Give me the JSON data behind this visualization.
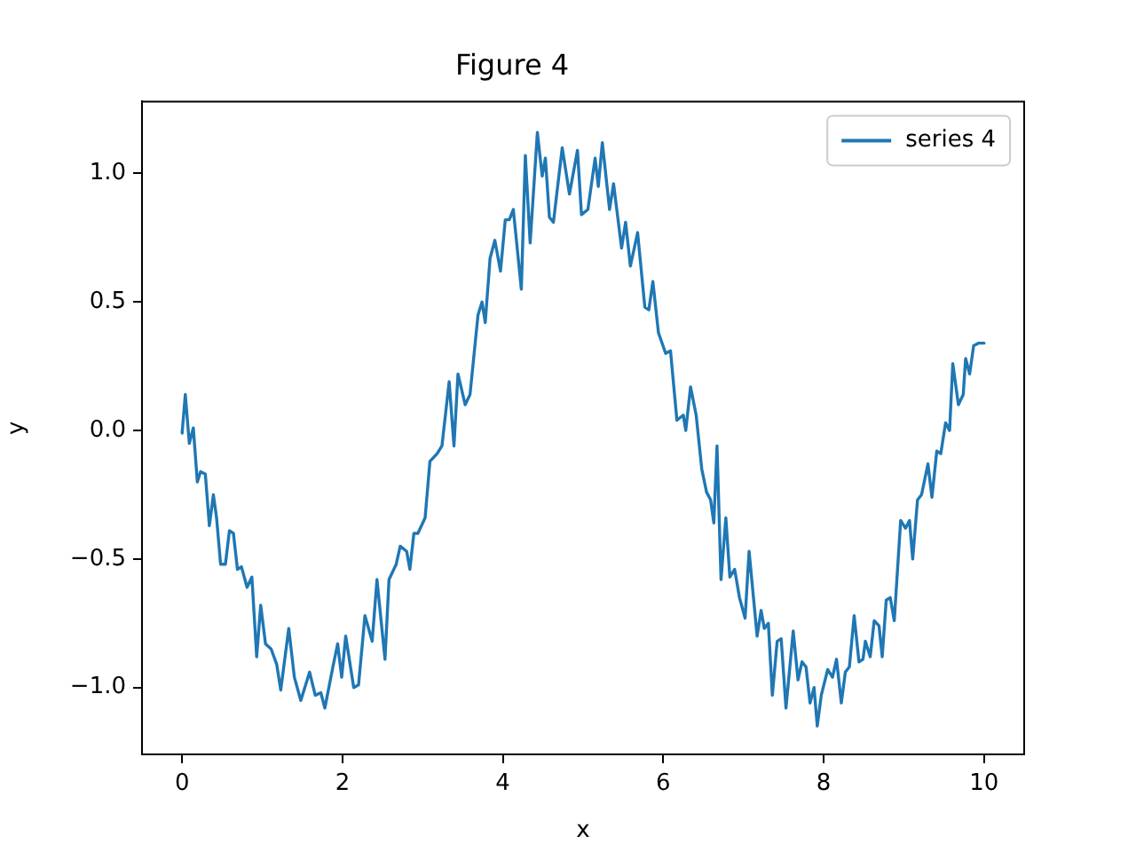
{
  "chart_data": {
    "type": "line",
    "title": "Figure 4",
    "xlabel": "x",
    "ylabel": "y",
    "xlim": [
      -0.5,
      10.5
    ],
    "ylim": [
      -1.26,
      1.28
    ],
    "xticks": [
      0,
      2,
      4,
      6,
      8,
      10
    ],
    "yticks": [
      {
        "value": -1,
        "label": "−1.0"
      },
      {
        "value": -0.5,
        "label": "−0.5"
      },
      {
        "value": 0,
        "label": "0.0"
      },
      {
        "value": 0.5,
        "label": "0.5"
      },
      {
        "value": 1,
        "label": "1.0"
      }
    ],
    "grid": false,
    "legend": "top right",
    "series": [
      {
        "name": "series 4",
        "color": "#1f77b4",
        "x": [
          0,
          0.04,
          0.09,
          0.14,
          0.19,
          0.23,
          0.29,
          0.34,
          0.39,
          0.43,
          0.48,
          0.54,
          0.59,
          0.64,
          0.69,
          0.74,
          0.81,
          0.87,
          0.93,
          0.98,
          1.04,
          1.11,
          1.18,
          1.23,
          1.33,
          1.4,
          1.48,
          1.59,
          1.66,
          1.73,
          1.78,
          1.88,
          1.94,
          1.99,
          2.04,
          2.14,
          2.2,
          2.28,
          2.37,
          2.43,
          2.53,
          2.58,
          2.67,
          2.72,
          2.8,
          2.84,
          2.89,
          2.94,
          3.03,
          3.09,
          3.18,
          3.24,
          3.33,
          3.39,
          3.44,
          3.53,
          3.59,
          3.69,
          3.74,
          3.78,
          3.84,
          3.9,
          3.97,
          4.03,
          4.08,
          4.13,
          4.23,
          4.28,
          4.34,
          4.43,
          4.49,
          4.53,
          4.58,
          4.63,
          4.74,
          4.83,
          4.93,
          4.98,
          5.06,
          5.15,
          5.19,
          5.24,
          5.33,
          5.38,
          5.48,
          5.53,
          5.59,
          5.68,
          5.77,
          5.82,
          5.87,
          5.94,
          6.03,
          6.09,
          6.17,
          6.25,
          6.28,
          6.34,
          6.41,
          6.48,
          6.54,
          6.59,
          6.63,
          6.67,
          6.72,
          6.78,
          6.83,
          6.89,
          6.95,
          7.02,
          7.07,
          7.17,
          7.22,
          7.26,
          7.31,
          7.36,
          7.42,
          7.47,
          7.53,
          7.62,
          7.68,
          7.73,
          7.78,
          7.83,
          7.88,
          7.92,
          7.97,
          8.05,
          8.11,
          8.16,
          8.22,
          8.27,
          8.32,
          8.38,
          8.44,
          8.49,
          8.52,
          8.58,
          8.63,
          8.69,
          8.73,
          8.78,
          8.83,
          8.88,
          8.96,
          9.02,
          9.07,
          9.11,
          9.17,
          9.22,
          9.3,
          9.35,
          9.41,
          9.46,
          9.52,
          9.57,
          9.61,
          9.68,
          9.74,
          9.77,
          9.82,
          9.87,
          9.93,
          10
        ],
        "values": [
          -0.01,
          0.14,
          -0.05,
          0.01,
          -0.2,
          -0.16,
          -0.17,
          -0.37,
          -0.25,
          -0.34,
          -0.52,
          -0.52,
          -0.39,
          -0.4,
          -0.54,
          -0.53,
          -0.61,
          -0.57,
          -0.88,
          -0.68,
          -0.83,
          -0.85,
          -0.91,
          -1.01,
          -0.77,
          -0.96,
          -1.05,
          -0.94,
          -1.03,
          -1.02,
          -1.08,
          -0.92,
          -0.83,
          -0.96,
          -0.8,
          -1,
          -0.99,
          -0.72,
          -0.82,
          -0.58,
          -0.89,
          -0.58,
          -0.52,
          -0.45,
          -0.47,
          -0.54,
          -0.4,
          -0.4,
          -0.34,
          -0.12,
          -0.09,
          -0.06,
          0.19,
          -0.06,
          0.22,
          0.1,
          0.14,
          0.45,
          0.5,
          0.42,
          0.67,
          0.74,
          0.62,
          0.82,
          0.82,
          0.86,
          0.55,
          1.07,
          0.73,
          1.16,
          0.99,
          1.06,
          0.83,
          0.81,
          1.1,
          0.92,
          1.09,
          0.84,
          0.86,
          1.06,
          0.95,
          1.12,
          0.86,
          0.96,
          0.71,
          0.81,
          0.64,
          0.77,
          0.48,
          0.47,
          0.58,
          0.38,
          0.3,
          0.31,
          0.04,
          0.06,
          0,
          0.17,
          0.06,
          -0.15,
          -0.24,
          -0.27,
          -0.36,
          -0.06,
          -0.58,
          -0.34,
          -0.57,
          -0.54,
          -0.65,
          -0.73,
          -0.47,
          -0.8,
          -0.7,
          -0.77,
          -0.75,
          -1.03,
          -0.82,
          -0.81,
          -1.08,
          -0.78,
          -0.97,
          -0.9,
          -0.92,
          -1.06,
          -1,
          -1.15,
          -1.03,
          -0.93,
          -0.96,
          -0.89,
          -1.06,
          -0.94,
          -0.92,
          -0.72,
          -0.9,
          -0.89,
          -0.82,
          -0.88,
          -0.74,
          -0.76,
          -0.88,
          -0.66,
          -0.65,
          -0.74,
          -0.35,
          -0.38,
          -0.35,
          -0.5,
          -0.27,
          -0.25,
          -0.13,
          -0.26,
          -0.08,
          -0.09,
          0.03,
          0,
          0.26,
          0.1,
          0.14,
          0.28,
          0.22,
          0.33,
          0.34,
          0.34
        ]
      }
    ]
  }
}
